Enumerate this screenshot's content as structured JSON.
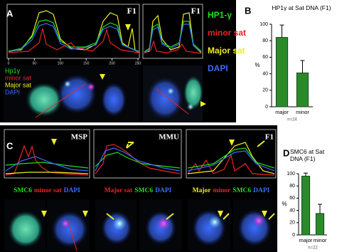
{
  "panel_a": {
    "label": "A",
    "plots": [
      {
        "title": "F1",
        "xticks": [
          0,
          50,
          100,
          150,
          200,
          250
        ]
      },
      {
        "title": "F1"
      }
    ],
    "legend": [
      {
        "name": "HP1-γ",
        "color": "#22dd22"
      },
      {
        "name": "minor sat",
        "color": "#ee2222"
      },
      {
        "name": "Major sat",
        "color": "#eeee22"
      },
      {
        "name": "DAPI",
        "color": "#3a6cff"
      }
    ],
    "image_labels": [
      {
        "text": "Hp1γ",
        "color": "#22dd22"
      },
      {
        "text": "minor sat",
        "color": "#ee2222"
      },
      {
        "text": "Major sat",
        "color": "#eeee22"
      },
      {
        "text": "DAPI",
        "color": "#3a6cff"
      }
    ]
  },
  "panel_b": {
    "label": "B",
    "chart_data": {
      "type": "bar",
      "title": "HP1γ at Sat DNA (F1)",
      "ylabel": "%",
      "categories": [
        "major",
        "minor"
      ],
      "values": [
        84,
        41
      ],
      "errors": [
        15,
        15
      ],
      "color": "#2a8a2a",
      "ylim": [
        0,
        100
      ],
      "yticks": [
        0,
        20,
        40,
        60,
        80,
        100
      ],
      "note": "n=24"
    }
  },
  "panel_c": {
    "label": "C",
    "plots": [
      {
        "title": "MSP",
        "caption": [
          {
            "text": "SMC6",
            "color": "#22dd22"
          },
          {
            "text": "minor sat",
            "color": "#ee2222"
          },
          {
            "text": "DAPI",
            "color": "#3a6cff"
          }
        ]
      },
      {
        "title": "MMU",
        "caption": [
          {
            "text": "Major sat",
            "color": "#ee2222"
          },
          {
            "text": "SMC6",
            "color": "#22dd22"
          },
          {
            "text": "DAPI",
            "color": "#3a6cff"
          }
        ]
      },
      {
        "title": "F1",
        "caption": [
          {
            "text": "Major",
            "color": "#eeee22"
          },
          {
            "text": "minor",
            "color": "#ee2222"
          },
          {
            "text": "SMC6",
            "color": "#22dd22"
          },
          {
            "text": "DAPI",
            "color": "#3a6cff"
          }
        ]
      }
    ]
  },
  "panel_d": {
    "label": "D",
    "chart_data": {
      "type": "bar",
      "title": "SMC6 at Sat DNA (F1)",
      "ylabel": "%",
      "categories": [
        "major",
        "minor"
      ],
      "values": [
        96,
        35
      ],
      "errors": [
        5,
        15
      ],
      "color": "#2a8a2a",
      "ylim": [
        0,
        100
      ],
      "yticks": [
        0,
        20,
        40,
        60,
        80,
        100
      ],
      "note": "n=22"
    }
  }
}
